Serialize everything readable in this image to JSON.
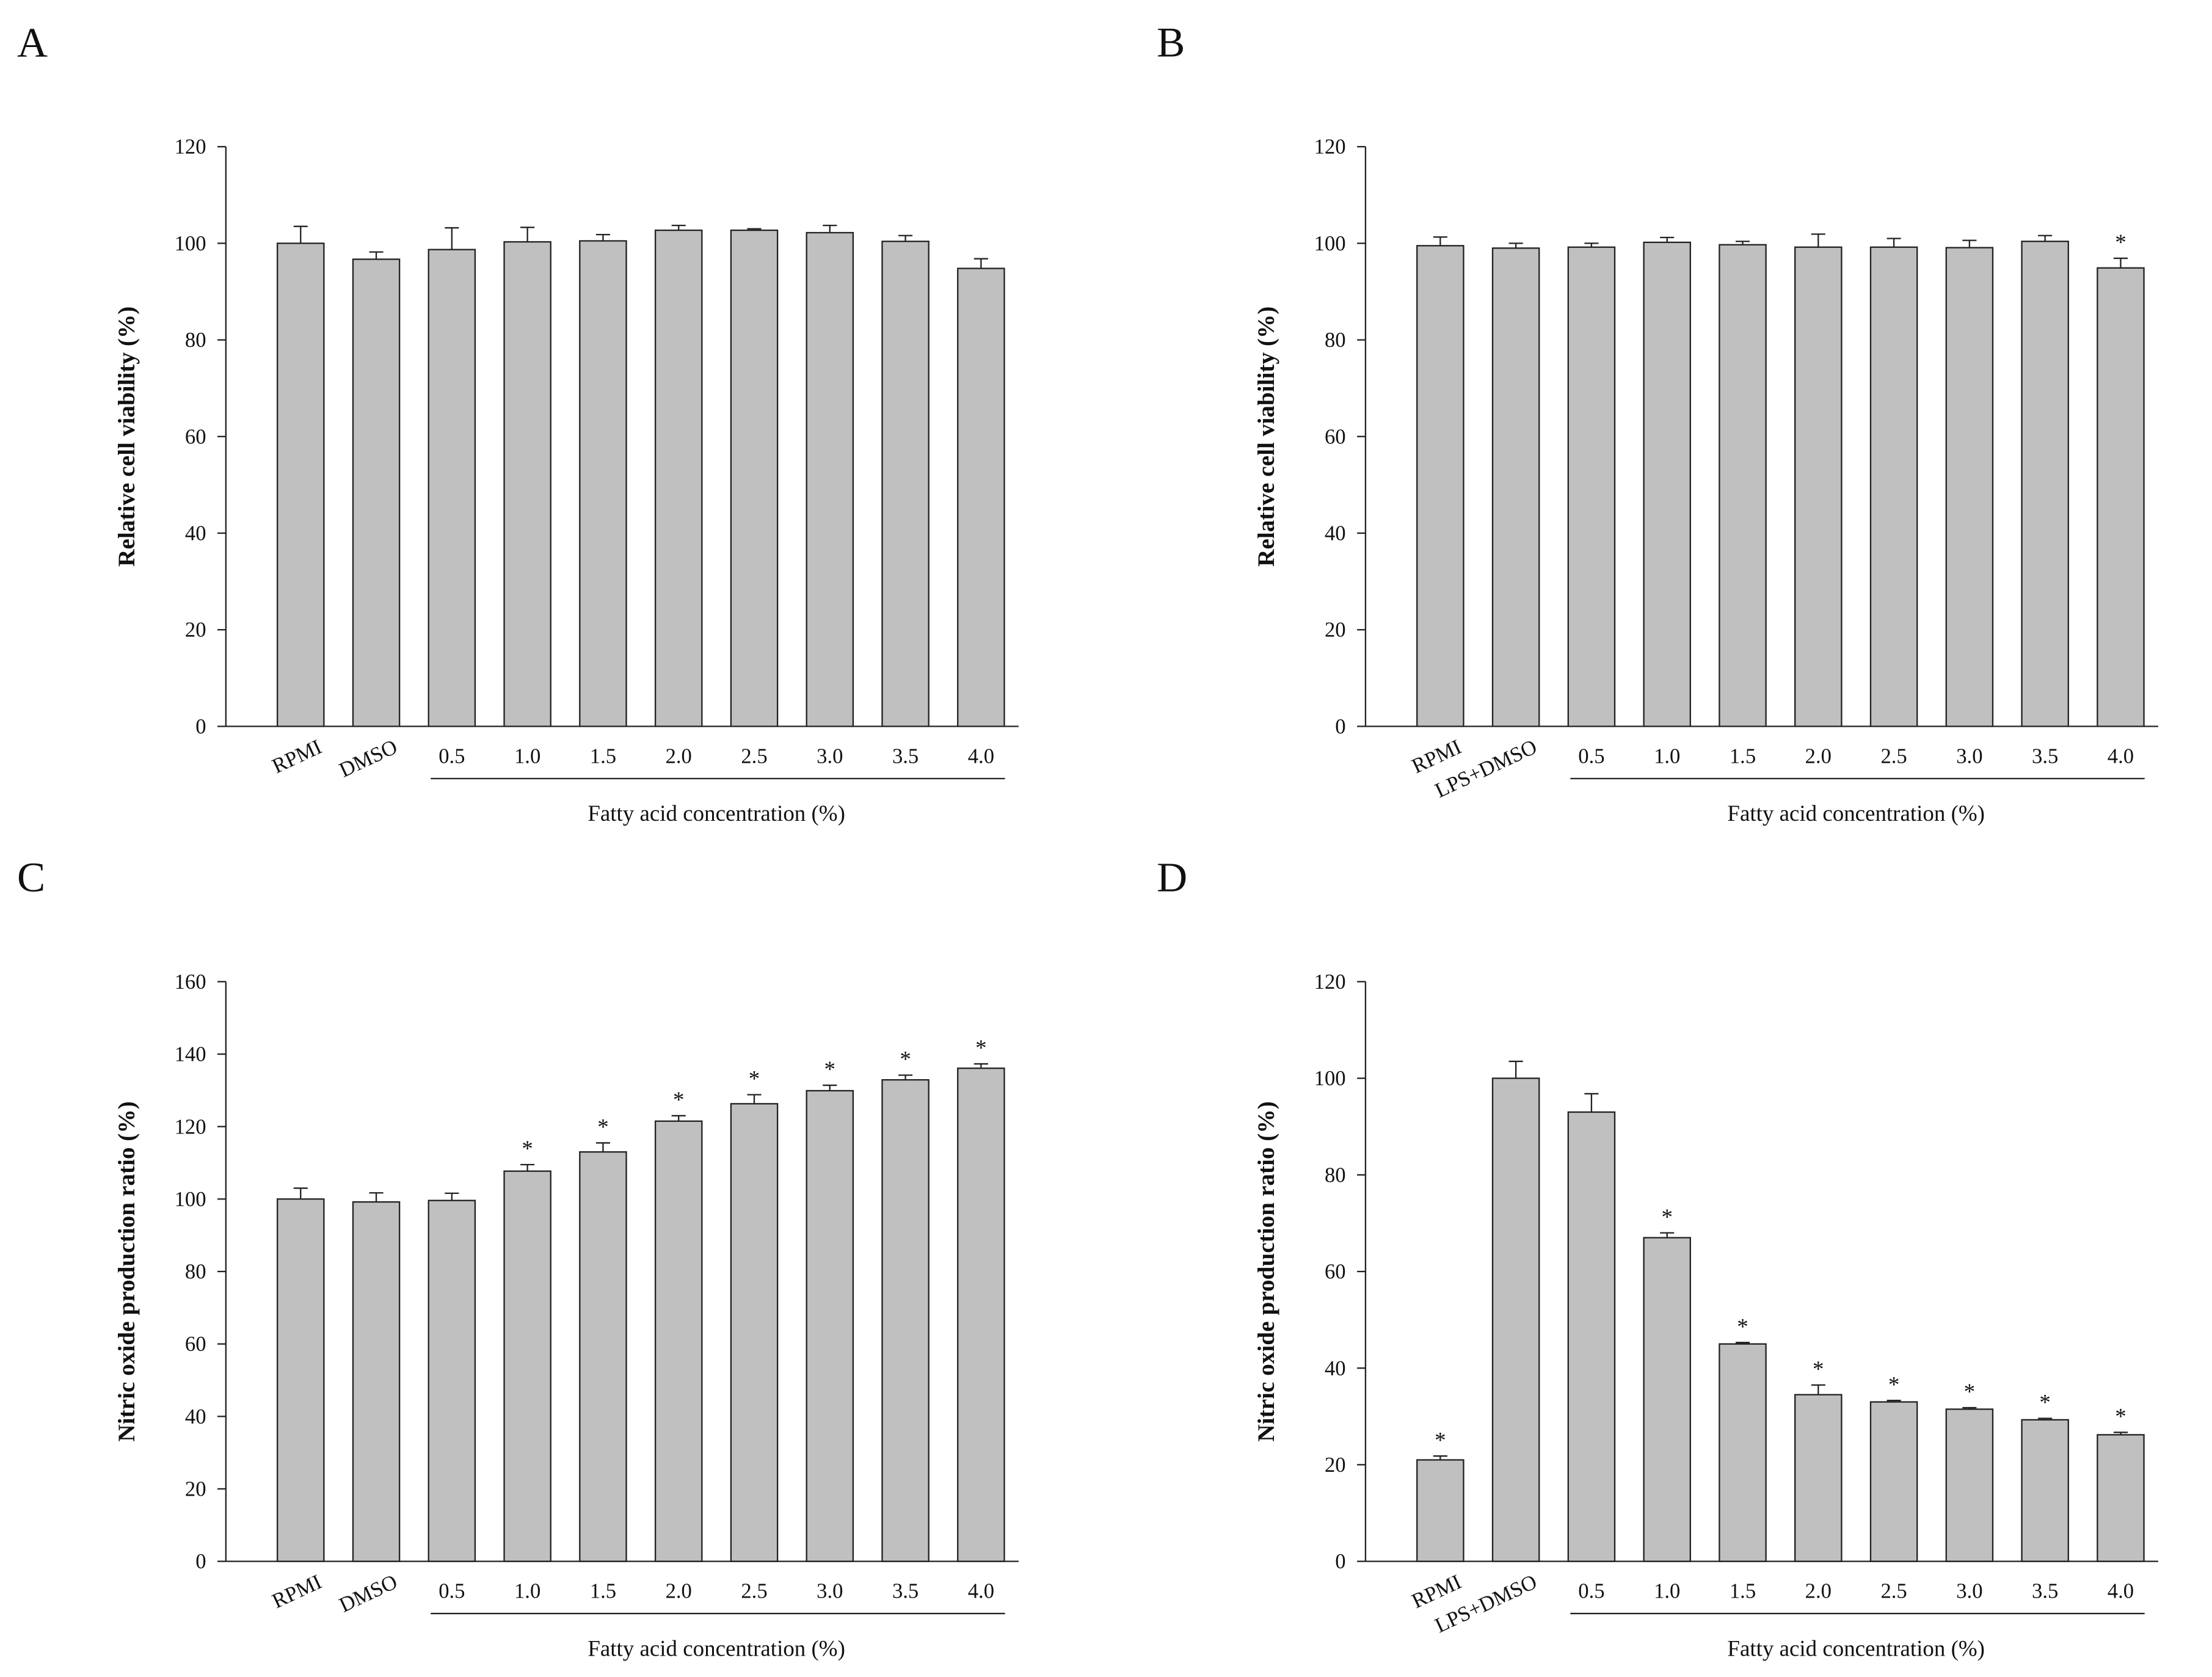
{
  "chart_data": [
    {
      "type": "bar",
      "panel": "A",
      "ylabel": "Relative cell viability (%)",
      "xlabel": "Fatty acid concentration (%)",
      "categories": [
        "RPMI",
        "DMSO",
        "0.5",
        "1.0",
        "1.5",
        "2.0",
        "2.5",
        "3.0",
        "3.5",
        "4.0"
      ],
      "values": [
        100,
        96.7,
        98.7,
        100.3,
        100.5,
        102.7,
        102.7,
        102.2,
        100.4,
        94.8
      ],
      "errors": [
        3.5,
        1.5,
        4.5,
        3,
        1.3,
        1,
        0.3,
        1.5,
        1.2,
        2
      ],
      "significance": [
        null,
        null,
        null,
        null,
        null,
        null,
        null,
        null,
        null,
        null
      ],
      "color": "#c0c0c0",
      "ylim": [
        0,
        120
      ],
      "yticks": [
        0,
        20,
        40,
        60,
        80,
        100,
        120
      ]
    },
    {
      "type": "bar",
      "panel": "B",
      "ylabel": "Relative cell viability (%)",
      "xlabel": "Fatty acid concentration (%)",
      "categories": [
        "RPMI",
        "LPS+DMSO",
        "0.5",
        "1.0",
        "1.5",
        "2.0",
        "2.5",
        "3.0",
        "3.5",
        "4.0"
      ],
      "values": [
        99.5,
        99,
        99.2,
        100.2,
        99.7,
        99.2,
        99.2,
        99.1,
        100.4,
        94.9
      ],
      "errors": [
        1.8,
        1,
        0.8,
        1,
        0.7,
        2.7,
        1.8,
        1.5,
        1.2,
        2
      ],
      "significance": [
        null,
        null,
        null,
        null,
        null,
        null,
        null,
        null,
        null,
        "*"
      ],
      "color": "#c0c0c0",
      "ylim": [
        0,
        120
      ],
      "yticks": [
        0,
        20,
        40,
        60,
        80,
        100,
        120
      ]
    },
    {
      "type": "bar",
      "panel": "C",
      "ylabel": "Nitric oxide production ratio (%)",
      "xlabel": "Fatty acid concentration (%)",
      "categories": [
        "RPMI",
        "DMSO",
        "0.5",
        "1.0",
        "1.5",
        "2.0",
        "2.5",
        "3.0",
        "3.5",
        "4.0"
      ],
      "values": [
        100,
        99.2,
        99.6,
        107.7,
        113,
        121.5,
        126.3,
        129.9,
        132.9,
        136.1
      ],
      "errors": [
        3,
        2.5,
        2,
        1.8,
        2.5,
        1.5,
        2.5,
        1.5,
        1.3,
        1.2
      ],
      "significance": [
        null,
        null,
        null,
        "*",
        "*",
        "*",
        "*",
        "*",
        "*",
        "*"
      ],
      "color": "#c0c0c0",
      "ylim": [
        0,
        160
      ],
      "yticks": [
        0,
        20,
        40,
        60,
        80,
        100,
        120,
        140,
        160
      ]
    },
    {
      "type": "bar",
      "panel": "D",
      "ylabel": "Nitric oxide production ratio (%)",
      "xlabel": "Fatty acid concentration (%)",
      "categories": [
        "RPMI",
        "LPS+DMSO",
        "0.5",
        "1.0",
        "1.5",
        "2.0",
        "2.5",
        "3.0",
        "3.5",
        "4.0"
      ],
      "values": [
        21,
        100,
        93,
        67,
        45,
        34.5,
        33,
        31.5,
        29.3,
        26.2
      ],
      "errors": [
        0.8,
        3.5,
        3.8,
        1,
        0.3,
        2,
        0.3,
        0.3,
        0.3,
        0.5
      ],
      "significance": [
        "*",
        null,
        null,
        "*",
        "*",
        "*",
        "*",
        "*",
        "*",
        "*"
      ],
      "color": "#c0c0c0",
      "ylim": [
        0,
        120
      ],
      "yticks": [
        0,
        20,
        40,
        60,
        80,
        100,
        120
      ]
    }
  ]
}
